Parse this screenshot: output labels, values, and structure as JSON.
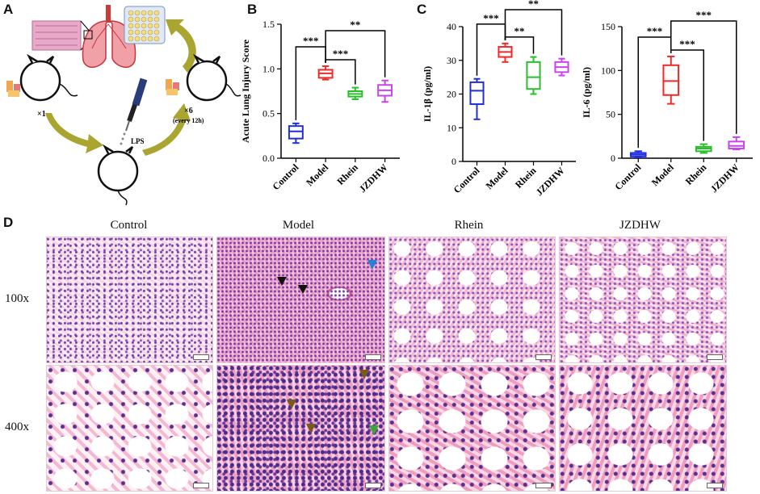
{
  "panel_labels": {
    "a": "A",
    "b": "B",
    "c": "C",
    "d": "D"
  },
  "schematic": {
    "dose_first": "×1",
    "dose_second": "×6",
    "dose_schedule": "(every 12h)",
    "stimulus": "LPS"
  },
  "chart_data": [
    {
      "type": "box",
      "ylabel": "Acute Lung Injury Score",
      "ylim": [
        0,
        1.5
      ],
      "yticks": [
        "0.0",
        "0.5",
        "1.0",
        "1.5"
      ],
      "categories": [
        "Control",
        "Model",
        "Rhein",
        "JZDHW"
      ],
      "colors": [
        "#1f2fe0",
        "#ef2a2a",
        "#27c02a",
        "#c844e8"
      ],
      "boxes": [
        {
          "min": 0.17,
          "q1": 0.22,
          "median": 0.3,
          "q3": 0.36,
          "max": 0.39
        },
        {
          "min": 0.88,
          "q1": 0.9,
          "median": 0.95,
          "q3": 0.99,
          "max": 1.03
        },
        {
          "min": 0.66,
          "q1": 0.69,
          "median": 0.72,
          "q3": 0.75,
          "max": 0.79
        },
        {
          "min": 0.63,
          "q1": 0.7,
          "median": 0.76,
          "q3": 0.82,
          "max": 0.87
        }
      ],
      "significance": [
        "***",
        "***",
        "**"
      ]
    },
    {
      "type": "box",
      "ylabel": "IL-1β (pg/ml)",
      "ylim": [
        0,
        40
      ],
      "yticks": [
        "0",
        "10",
        "20",
        "30",
        "40"
      ],
      "categories": [
        "Control",
        "Model",
        "Rhein",
        "JZDHW"
      ],
      "colors": [
        "#1f2fe0",
        "#ef2a2a",
        "#27c02a",
        "#c844e8"
      ],
      "boxes": [
        {
          "min": 12.5,
          "q1": 17,
          "median": 21,
          "q3": 23.5,
          "max": 24.5
        },
        {
          "min": 29.5,
          "q1": 31,
          "median": 32.5,
          "q3": 34,
          "max": 35
        },
        {
          "min": 20,
          "q1": 21.5,
          "median": 25,
          "q3": 29.5,
          "max": 31
        },
        {
          "min": 25.5,
          "q1": 26.5,
          "median": 28,
          "q3": 29.5,
          "max": 30.5
        }
      ],
      "significance": [
        "***",
        "**",
        "**"
      ]
    },
    {
      "type": "box",
      "ylabel": "IL-6 (pg/ml)",
      "ylim": [
        0,
        150
      ],
      "yticks": [
        "0",
        "50",
        "100",
        "150"
      ],
      "categories": [
        "Control",
        "Model",
        "Rhein",
        "JZDHW"
      ],
      "colors": [
        "#1f2fe0",
        "#ef2a2a",
        "#27c02a",
        "#c844e8"
      ],
      "boxes": [
        {
          "min": 1,
          "q1": 2,
          "median": 4,
          "q3": 6,
          "max": 8
        },
        {
          "min": 62,
          "q1": 72,
          "median": 88,
          "q3": 106,
          "max": 116
        },
        {
          "min": 6,
          "q1": 8,
          "median": 11,
          "q3": 13,
          "max": 16
        },
        {
          "min": 10,
          "q1": 11,
          "median": 14,
          "q3": 19,
          "max": 24
        }
      ],
      "significance": [
        "***",
        "***",
        "***"
      ]
    }
  ],
  "histology": {
    "columns": [
      "Control",
      "Model",
      "Rhein",
      "JZDHW"
    ],
    "rows": [
      "100x",
      "400x"
    ],
    "arrow_colors": {
      "black": "#111111",
      "blue": "#2a7fd8",
      "brown": "#7a5a1a",
      "green": "#3aa836"
    }
  }
}
